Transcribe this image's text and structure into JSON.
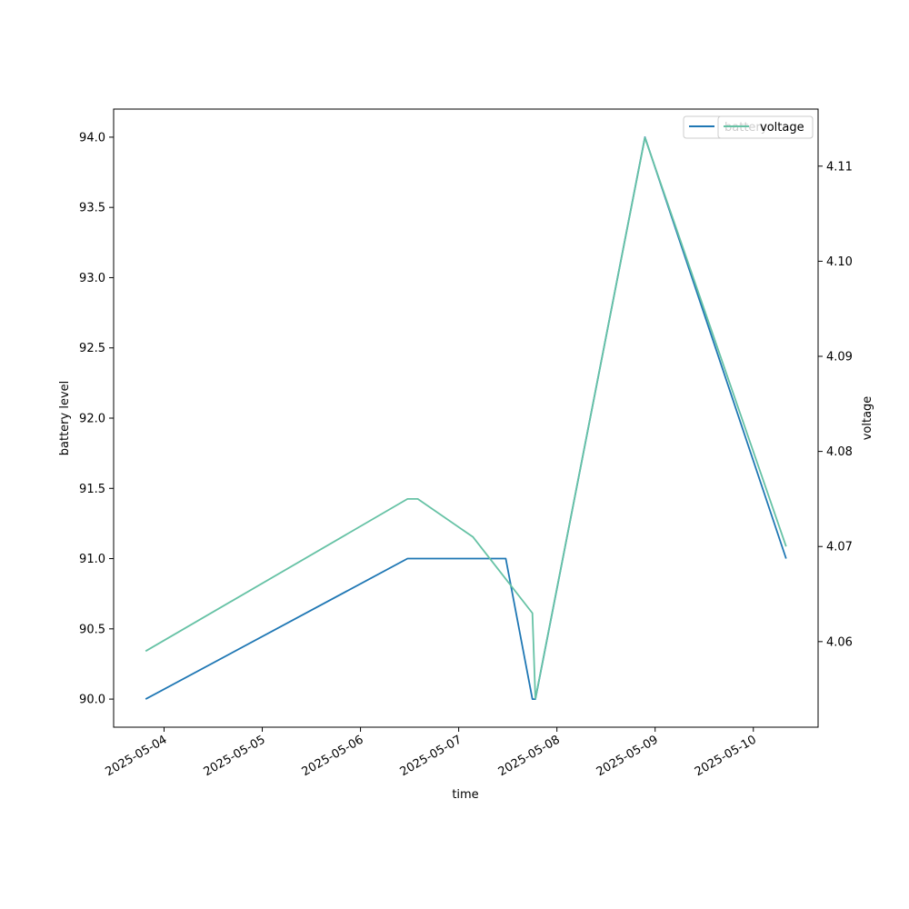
{
  "chart_data": {
    "type": "line",
    "title": "",
    "xlabel": "time",
    "ylabel": "battery level",
    "y2label": "voltage",
    "x_ticks": [
      "2025-05-04",
      "2025-05-05",
      "2025-05-06",
      "2025-05-07",
      "2025-05-08",
      "2025-05-09",
      "2025-05-10"
    ],
    "ylim": [
      89.8,
      94.2
    ],
    "y_ticks": [
      "90.0",
      "90.5",
      "91.0",
      "91.5",
      "92.0",
      "92.5",
      "93.0",
      "93.5",
      "94.0"
    ],
    "y2lim": [
      4.051,
      4.116
    ],
    "y2_ticks": [
      "4.06",
      "4.07",
      "4.08",
      "4.09",
      "4.10",
      "4.11"
    ],
    "grid": false,
    "legend_position": "top-right",
    "series": [
      {
        "name": "battery",
        "axis": "left",
        "color": "#1f77b4",
        "points": [
          {
            "x": "2025-05-03 19:30",
            "y": 90.0
          },
          {
            "x": "2025-05-06 11:30",
            "y": 91.0
          },
          {
            "x": "2025-05-07 11:30",
            "y": 91.0
          },
          {
            "x": "2025-05-07 18:00",
            "y": 90.0
          },
          {
            "x": "2025-05-07 18:45",
            "y": 90.0
          },
          {
            "x": "2025-05-08 21:30",
            "y": 94.0
          },
          {
            "x": "2025-05-10 08:00",
            "y": 91.0
          }
        ]
      },
      {
        "name": "voltage",
        "axis": "right",
        "color": "#66c2a5",
        "points": [
          {
            "x": "2025-05-03 19:30",
            "y": 4.059
          },
          {
            "x": "2025-05-06 11:30",
            "y": 4.075
          },
          {
            "x": "2025-05-06 14:00",
            "y": 4.075
          },
          {
            "x": "2025-05-07 03:30",
            "y": 4.071
          },
          {
            "x": "2025-05-07 18:00",
            "y": 4.063
          },
          {
            "x": "2025-05-07 18:45",
            "y": 4.054
          },
          {
            "x": "2025-05-08 21:30",
            "y": 4.113
          },
          {
            "x": "2025-05-10 08:00",
            "y": 4.07
          }
        ]
      }
    ]
  }
}
